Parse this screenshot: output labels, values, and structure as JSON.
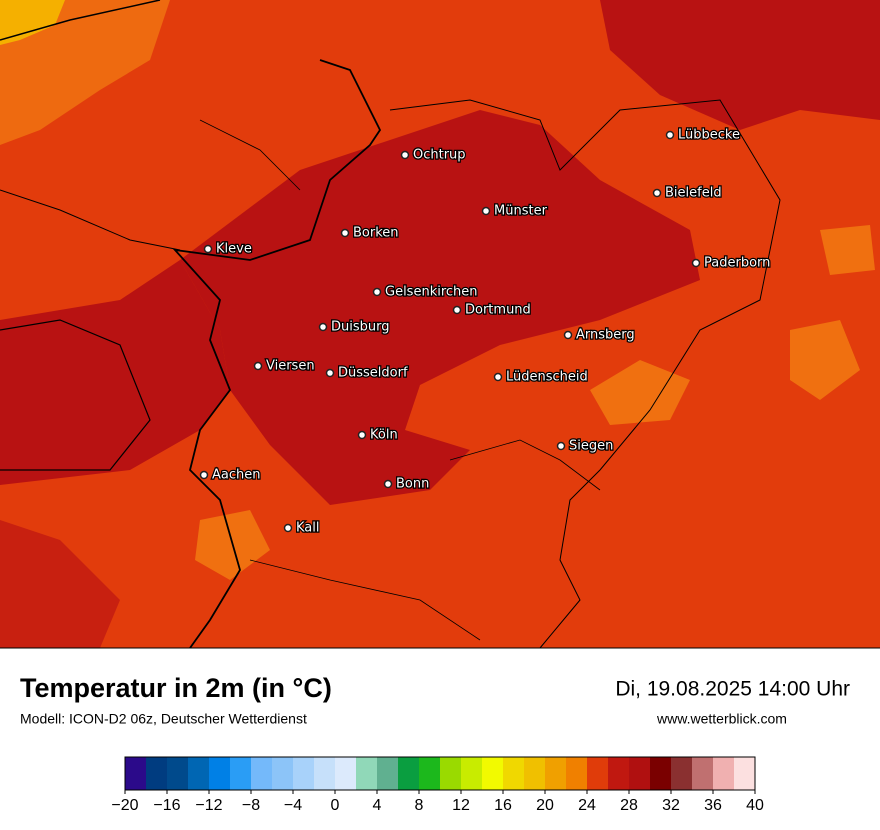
{
  "title": "Temperatur in 2m (in °C)",
  "subtitle": "Modell: ICON-D2 06z, Deutscher Wetterdienst",
  "valid_time": "Di, 19.08.2025 14:00 Uhr",
  "website": "www.wetterblick.com",
  "cities": [
    "Ochtrup",
    "Lübbecke",
    "Bielefeld",
    "Münster",
    "Borken",
    "Kleve",
    "Paderborn",
    "Gelsenkirchen",
    "Dortmund",
    "Duisburg",
    "Arnsberg",
    "Viersen",
    "Düsseldorf",
    "Lüdenscheid",
    "Köln",
    "Siegen",
    "Aachen",
    "Bonn",
    "Kall"
  ],
  "colorbar": {
    "bounds": [
      -20,
      -18,
      -16,
      -14,
      -12,
      -10,
      -8,
      -6,
      -4,
      -2,
      0,
      2,
      4,
      6,
      8,
      10,
      12,
      14,
      16,
      18,
      20,
      22,
      24,
      26,
      28,
      30,
      32,
      34,
      36,
      38,
      40
    ],
    "colors": [
      "#2b0a8a",
      "#003c80",
      "#004a8c",
      "#0066b3",
      "#0080e6",
      "#2a9df5",
      "#74b9fa",
      "#8cc4f8",
      "#a8d2fa",
      "#c6e0fa",
      "#dceafc",
      "#90d8b8",
      "#60b090",
      "#0a9e40",
      "#1cb81c",
      "#9ada00",
      "#c8ec00",
      "#f2fa00",
      "#f0d800",
      "#f0c000",
      "#f0a000",
      "#f08000",
      "#e03c0a",
      "#c01810",
      "#b01010",
      "#7a0000",
      "#8a3030",
      "#c07070",
      "#f0b0b0",
      "#fce0e0"
    ],
    "ticks": [
      {
        "value": -20,
        "label": "−20"
      },
      {
        "value": -16,
        "label": "−16"
      },
      {
        "value": -12,
        "label": "−12"
      },
      {
        "value": -8,
        "label": "−8"
      },
      {
        "value": -4,
        "label": "−4"
      },
      0,
      4,
      8,
      12,
      16,
      20,
      24,
      28,
      32,
      36,
      40
    ]
  }
}
